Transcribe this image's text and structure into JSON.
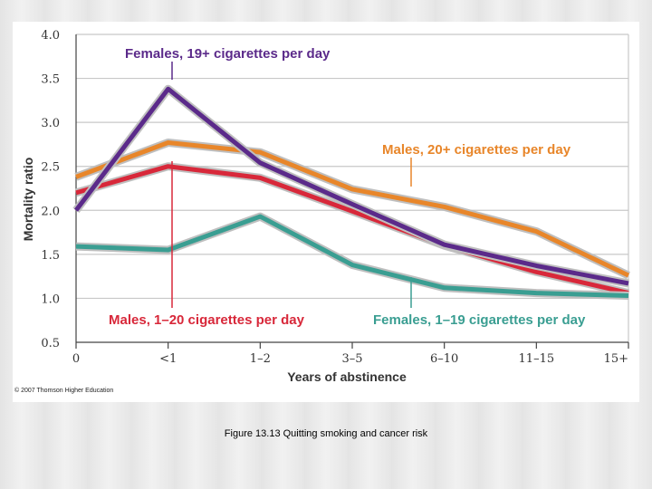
{
  "chart_data": {
    "type": "line",
    "title": "",
    "xlabel": "Years of abstinence",
    "ylabel": "Mortality ratio",
    "categories": [
      "0",
      "<1",
      "1–2",
      "3–5",
      "6–10",
      "11–15",
      "15+"
    ],
    "yticks": [
      "4.0",
      "3.5",
      "3.0",
      "2.5",
      "2.0",
      "1.5",
      "1.0",
      "0.5"
    ],
    "ylim": [
      0.5,
      4.0
    ],
    "grid": true,
    "series": [
      {
        "name": "Males, 20+ cigarettes per day",
        "color": "#e8862a",
        "values": [
          2.38,
          2.77,
          2.66,
          2.24,
          2.04,
          1.76,
          1.26
        ]
      },
      {
        "name": "Males, 1–20 cigarettes per day",
        "color": "#d8283a",
        "values": [
          2.2,
          2.5,
          2.37,
          1.99,
          1.6,
          1.3,
          1.06
        ]
      },
      {
        "name": "Females, 19+ cigarettes per day",
        "color": "#5b2a8a",
        "values": [
          2.0,
          3.38,
          2.54,
          2.07,
          1.61,
          1.37,
          1.17
        ]
      },
      {
        "name": "Females, 1–19 cigarettes per day",
        "color": "#3a9e92",
        "values": [
          1.59,
          1.55,
          1.93,
          1.38,
          1.12,
          1.06,
          1.03
        ]
      }
    ]
  },
  "copyright": "© 2007 Thomson Higher Education",
  "caption": "Figure 13.13 Quitting smoking and cancer risk"
}
